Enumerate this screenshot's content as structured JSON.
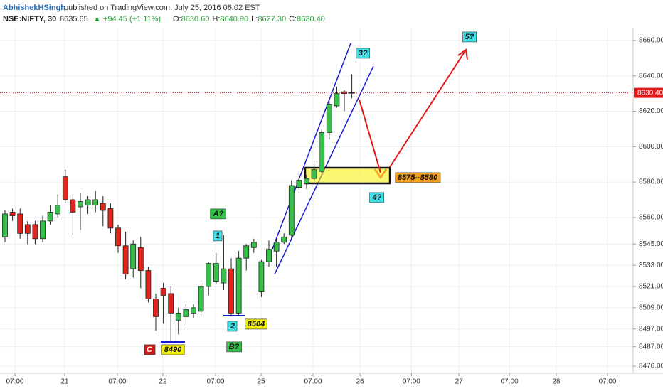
{
  "header": {
    "author": "AbhishekHSingh",
    "published": "published on TradingView.com, July 25, 2016 06:02 EST",
    "symbol": "NSE:NIFTY, 30",
    "price": "8635.65",
    "change": "▲ +94.45 (+1.11%)",
    "ohlc": [
      {
        "key": "O:",
        "value": "8630.60"
      },
      {
        "key": "H:",
        "value": "8640.90"
      },
      {
        "key": "L:",
        "value": "8627.30"
      },
      {
        "key": "C:",
        "value": "8630.40"
      }
    ]
  },
  "chart_data": {
    "type": "candlestick",
    "x": [
      0,
      1,
      2,
      3,
      4,
      5,
      6,
      7,
      8,
      9,
      10,
      11,
      12,
      13,
      14,
      15,
      16,
      17,
      18,
      19,
      20,
      21,
      22,
      23,
      24,
      25,
      26,
      27,
      28,
      29,
      30,
      31,
      32,
      33,
      34,
      35,
      36,
      37,
      38,
      39,
      40,
      41,
      42,
      43,
      44,
      45,
      46
    ],
    "open": [
      8549,
      8563,
      8562,
      8556,
      8556,
      8548,
      8558,
      8562,
      8583,
      8570,
      8566,
      8567,
      8567,
      8568,
      8565,
      8554,
      8544,
      8531,
      8543,
      8530,
      8514,
      8520,
      8517,
      8502,
      8504,
      8506,
      8507,
      8521,
      8524,
      8523,
      8531,
      8506,
      8537,
      8543,
      8518,
      8535,
      8541,
      8546,
      8550,
      8577,
      8579,
      8582,
      8586,
      8608,
      8623,
      8631,
      8630.6
    ],
    "high": [
      8564,
      8565,
      8565,
      8558,
      8558,
      8561,
      8567,
      8573,
      8587,
      8573,
      8574,
      8572,
      8575,
      8572,
      8568,
      8556,
      8552,
      8547,
      8549,
      8532,
      8517,
      8523,
      8521,
      8509,
      8511,
      8511,
      8523,
      8535,
      8540,
      8550,
      8537,
      8541,
      8545,
      8548,
      8536,
      8547,
      8548,
      8551,
      8581,
      8586,
      8584,
      8592,
      8610,
      8626,
      8634,
      8632,
      8640.9
    ],
    "low": [
      8546,
      8558,
      8548,
      8545,
      8545,
      8546,
      8556,
      8560,
      8568,
      8550,
      8553,
      8562,
      8563,
      8555,
      8551,
      8540,
      8525,
      8526,
      8520,
      8512,
      8496,
      8500,
      8490,
      8494,
      8499,
      8503,
      8505,
      8516,
      8522,
      8519,
      8504,
      8505,
      8530,
      8540,
      8515,
      8532,
      8532,
      8545,
      8547,
      8574,
      8576,
      8580,
      8585,
      8604,
      8622,
      8620,
      8627.3
    ],
    "close": [
      8562,
      8561,
      8551,
      8551,
      8548,
      8558,
      8563,
      8567,
      8570,
      8563,
      8569,
      8570,
      8570,
      8564,
      8554,
      8544,
      8528,
      8545,
      8530,
      8514,
      8504,
      8516,
      8506,
      8506,
      8508,
      8509,
      8521,
      8534,
      8534,
      8531,
      8506,
      8537,
      8544,
      8546,
      8535,
      8542,
      8546,
      8549,
      8578,
      8581,
      8582,
      8587,
      8608,
      8624,
      8630,
      8630,
      8630.4
    ],
    "up_color": "#35c04a",
    "down_color": "#e0261c",
    "xlim": [
      -0.66,
      83.3
    ],
    "xticks": [
      {
        "value": 1.32,
        "label": "07:00"
      },
      {
        "value": 7.92,
        "label": "21"
      },
      {
        "value": 14.9,
        "label": "07:00"
      },
      {
        "value": 20.94,
        "label": "22"
      },
      {
        "value": 27.92,
        "label": "07:00"
      },
      {
        "value": 33.96,
        "label": "25"
      },
      {
        "value": 40.85,
        "label": "07:00"
      },
      {
        "value": 47.08,
        "label": "26"
      },
      {
        "value": 53.9,
        "label": "07:00"
      },
      {
        "value": 60.2,
        "label": "27"
      },
      {
        "value": 66.9,
        "label": "07:00"
      },
      {
        "value": 73.1,
        "label": "28"
      },
      {
        "value": 79.9,
        "label": "07:00"
      }
    ],
    "ylim": [
      8472,
      8666.8
    ],
    "yticks": [
      {
        "value": 8660,
        "label": "8660.00"
      },
      {
        "value": 8640,
        "label": "8640.00"
      },
      {
        "value": 8620,
        "label": "8620.00"
      },
      {
        "value": 8600,
        "label": "8600.00"
      },
      {
        "value": 8580,
        "label": "8580.00"
      },
      {
        "value": 8560,
        "label": "8560.00"
      },
      {
        "value": 8545,
        "label": "8545.00"
      },
      {
        "value": 8533,
        "label": "8533.00"
      },
      {
        "value": 8521,
        "label": "8521.00"
      },
      {
        "value": 8509,
        "label": "8509.00"
      },
      {
        "value": 8497,
        "label": "8497.00"
      },
      {
        "value": 8487,
        "label": "8487.00"
      },
      {
        "value": 8476,
        "label": "8476.00"
      }
    ],
    "grid": true,
    "last_price": {
      "value": 8630.4,
      "label": "8630.40"
    },
    "annotations": [
      {
        "text": "A?",
        "color": "#35c04a"
      },
      {
        "text": "1",
        "color": "#3fe0e8"
      },
      {
        "text": "2",
        "color": "#3fe0e8"
      },
      {
        "text": "8504",
        "color": "#f5f000"
      },
      {
        "text": "C",
        "color": "#d01a1a"
      },
      {
        "text": "8490",
        "color": "#f5f000"
      },
      {
        "text": "B?",
        "color": "#35c04a"
      },
      {
        "text": "3?",
        "color": "#3fe0e8"
      },
      {
        "text": "4?",
        "color": "#3fe0e8"
      },
      {
        "text": "5?",
        "color": "#3fe0e8"
      },
      {
        "text": "8575--8580",
        "color": "#f5a020"
      }
    ]
  }
}
